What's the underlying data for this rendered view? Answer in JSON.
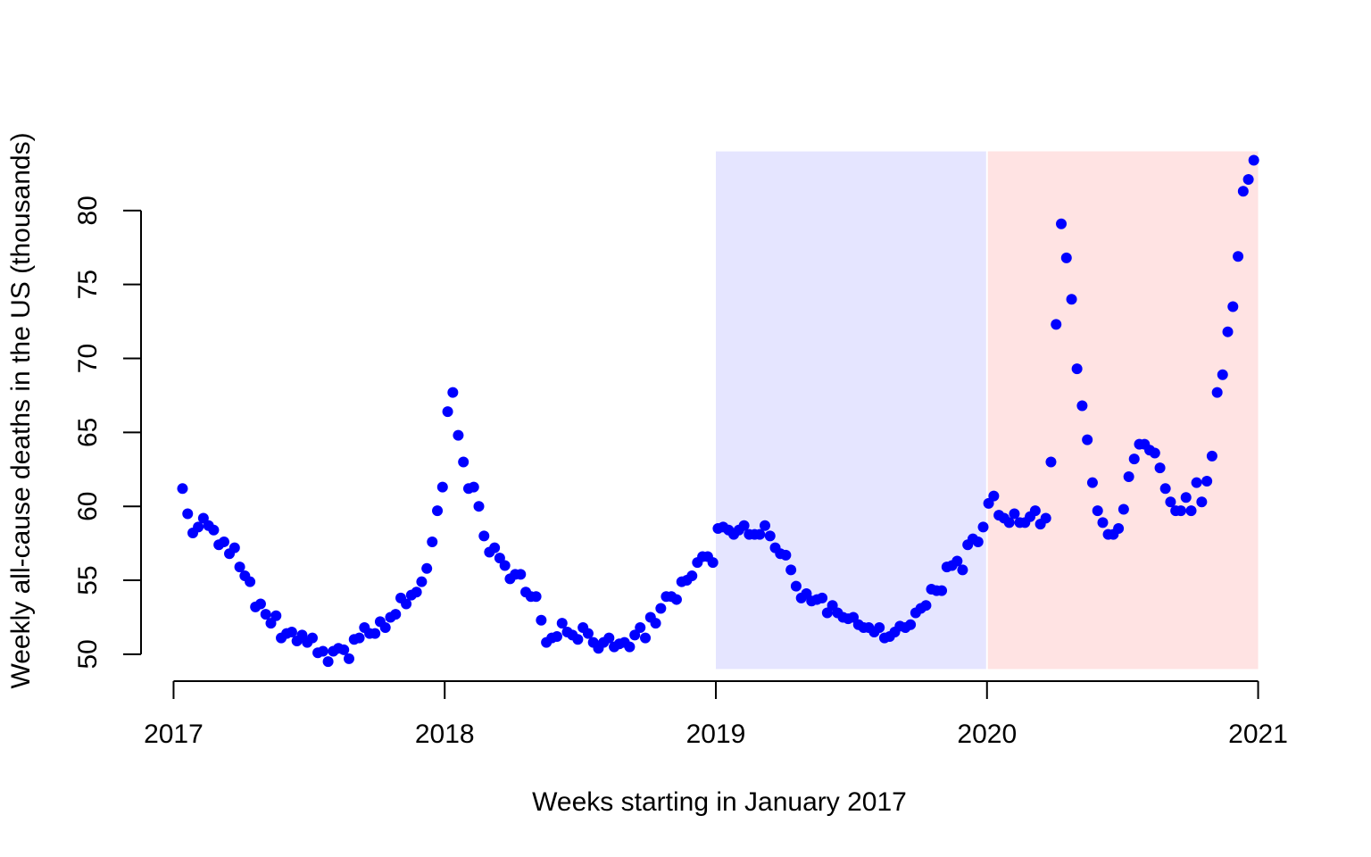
{
  "chart_data": {
    "type": "scatter",
    "x_label": "Weeks starting in January 2017",
    "y_label": "Weekly all-cause deaths in the US (thousands)",
    "xlim": [
      2016.88,
      2021.12
    ],
    "ylim": [
      48,
      85
    ],
    "xticks": [
      2017,
      2018,
      2019,
      2020,
      2021
    ],
    "yticks": [
      50,
      55,
      60,
      65,
      70,
      75,
      80
    ],
    "shaded_regions": [
      {
        "x": [
          2019,
          2020
        ],
        "y": [
          49,
          84
        ],
        "color": "#e5e5ff"
      },
      {
        "x": [
          2020,
          2021
        ],
        "y": [
          49,
          84
        ],
        "color": "#ffe3e3"
      }
    ],
    "x": [
      2017.033,
      2017.052,
      2017.071,
      2017.091,
      2017.11,
      2017.129,
      2017.148,
      2017.167,
      2017.186,
      2017.206,
      2017.225,
      2017.244,
      2017.263,
      2017.282,
      2017.302,
      2017.321,
      2017.34,
      2017.359,
      2017.378,
      2017.397,
      2017.417,
      2017.436,
      2017.455,
      2017.474,
      2017.493,
      2017.512,
      2017.532,
      2017.551,
      2017.57,
      2017.589,
      2017.608,
      2017.628,
      2017.647,
      2017.666,
      2017.685,
      2017.704,
      2017.723,
      2017.743,
      2017.762,
      2017.781,
      2017.8,
      2017.819,
      2017.838,
      2017.858,
      2017.877,
      2017.896,
      2017.915,
      2017.934,
      2017.954,
      2017.973,
      2017.992,
      2018.011,
      2018.03,
      2018.05,
      2018.069,
      2018.088,
      2018.107,
      2018.126,
      2018.145,
      2018.165,
      2018.184,
      2018.203,
      2018.222,
      2018.241,
      2018.26,
      2018.28,
      2018.299,
      2018.318,
      2018.337,
      2018.356,
      2018.375,
      2018.395,
      2018.414,
      2018.433,
      2018.452,
      2018.471,
      2018.491,
      2018.51,
      2018.529,
      2018.548,
      2018.567,
      2018.586,
      2018.606,
      2018.625,
      2018.644,
      2018.663,
      2018.682,
      2018.701,
      2018.721,
      2018.74,
      2018.759,
      2018.778,
      2018.797,
      2018.817,
      2018.836,
      2018.855,
      2018.874,
      2018.893,
      2018.912,
      2018.932,
      2018.951,
      2018.97,
      2018.989,
      2019.008,
      2019.027,
      2019.047,
      2019.066,
      2019.085,
      2019.104,
      2019.123,
      2019.143,
      2019.162,
      2019.181,
      2019.2,
      2019.219,
      2019.238,
      2019.258,
      2019.277,
      2019.296,
      2019.315,
      2019.334,
      2019.353,
      2019.373,
      2019.392,
      2019.411,
      2019.43,
      2019.449,
      2019.469,
      2019.488,
      2019.507,
      2019.526,
      2019.545,
      2019.564,
      2019.584,
      2019.603,
      2019.622,
      2019.641,
      2019.66,
      2019.679,
      2019.699,
      2019.718,
      2019.737,
      2019.756,
      2019.775,
      2019.795,
      2019.814,
      2019.833,
      2019.852,
      2019.871,
      2019.89,
      2019.91,
      2019.929,
      2019.948,
      2019.967,
      2019.986,
      2020.006,
      2020.025,
      2020.044,
      2020.063,
      2020.082,
      2020.101,
      2020.121,
      2020.14,
      2020.159,
      2020.178,
      2020.197,
      2020.217,
      2020.236,
      2020.255,
      2020.274,
      2020.293,
      2020.312,
      2020.332,
      2020.351,
      2020.37,
      2020.389,
      2020.408,
      2020.427,
      2020.447,
      2020.466,
      2020.485,
      2020.504,
      2020.523,
      2020.543,
      2020.562,
      2020.581,
      2020.6,
      2020.619,
      2020.638,
      2020.658,
      2020.677,
      2020.696,
      2020.715,
      2020.734,
      2020.753,
      2020.773,
      2020.792,
      2020.811,
      2020.83,
      2020.849,
      2020.869,
      2020.888,
      2020.907,
      2020.926,
      2020.945,
      2020.964,
      2020.984
    ],
    "series": [
      {
        "color": "#0000ff",
        "values": [
          61.2,
          59.5,
          58.2,
          58.6,
          59.2,
          58.7,
          58.4,
          57.4,
          57.6,
          56.8,
          57.2,
          55.9,
          55.3,
          54.9,
          53.2,
          53.4,
          52.7,
          52.1,
          52.6,
          51.1,
          51.4,
          51.5,
          50.9,
          51.3,
          50.8,
          51.1,
          50.1,
          50.2,
          49.5,
          50.2,
          50.4,
          50.3,
          49.7,
          51.0,
          51.1,
          51.8,
          51.4,
          51.4,
          52.2,
          51.8,
          52.5,
          52.7,
          53.8,
          53.4,
          54.0,
          54.2,
          54.9,
          55.8,
          57.6,
          59.7,
          61.3,
          66.4,
          67.7,
          64.8,
          63.0,
          61.2,
          61.3,
          60.0,
          58.0,
          56.9,
          57.2,
          56.5,
          56.0,
          55.1,
          55.4,
          55.4,
          54.2,
          53.9,
          53.9,
          52.3,
          50.8,
          51.1,
          51.2,
          52.1,
          51.5,
          51.3,
          51.0,
          51.8,
          51.4,
          50.8,
          50.4,
          50.8,
          51.1,
          50.5,
          50.7,
          50.8,
          50.5,
          51.3,
          51.8,
          51.1,
          52.5,
          52.1,
          53.1,
          53.9,
          53.9,
          53.7,
          54.9,
          55.0,
          55.3,
          56.2,
          56.6,
          56.6,
          56.2,
          58.5,
          58.6,
          58.4,
          58.1,
          58.4,
          58.7,
          58.1,
          58.1,
          58.1,
          58.7,
          58.0,
          57.2,
          56.8,
          56.7,
          55.7,
          54.6,
          53.8,
          54.1,
          53.6,
          53.7,
          53.8,
          52.8,
          53.3,
          52.8,
          52.5,
          52.4,
          52.5,
          52.0,
          51.8,
          51.8,
          51.5,
          51.8,
          51.1,
          51.2,
          51.5,
          51.9,
          51.8,
          52.0,
          52.8,
          53.1,
          53.3,
          54.4,
          54.3,
          54.3,
          55.9,
          56.0,
          56.3,
          55.7,
          57.4,
          57.8,
          57.6,
          58.6,
          60.2,
          60.7,
          59.4,
          59.2,
          58.9,
          59.5,
          58.9,
          58.9,
          59.3,
          59.7,
          58.8,
          59.2,
          63.0,
          72.3,
          79.1,
          76.8,
          74.0,
          69.3,
          66.8,
          64.5,
          61.6,
          59.7,
          58.9,
          58.1,
          58.1,
          58.5,
          59.8,
          62.0,
          63.2,
          64.2,
          64.2,
          63.8,
          63.6,
          62.6,
          61.2,
          60.3,
          59.7,
          59.7,
          60.6,
          59.7,
          61.6,
          60.3,
          61.7,
          63.4,
          67.7,
          68.9,
          71.8,
          73.5,
          76.9,
          81.3,
          82.1,
          83.4
        ]
      }
    ]
  }
}
